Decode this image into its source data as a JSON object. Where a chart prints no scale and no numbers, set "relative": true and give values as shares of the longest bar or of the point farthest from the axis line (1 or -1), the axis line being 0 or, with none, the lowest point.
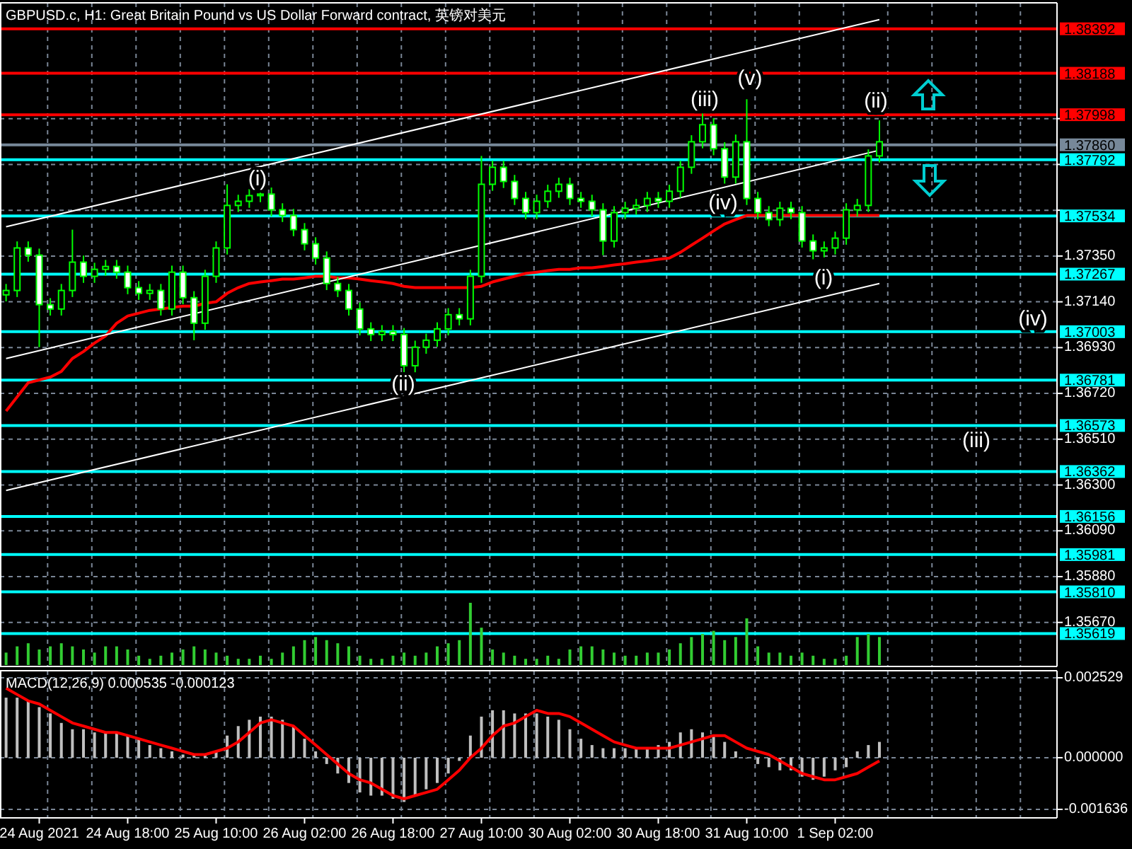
{
  "chart_data": [
    {
      "type": "candlestick",
      "title": "GBPUSD.c, H1:  Great Britain Pound vs US Dollar Forward contract, 英镑对美元",
      "color": "#00ff00",
      "categories": [
        null,
        null,
        null,
        null,
        null,
        null,
        null,
        null,
        null,
        null,
        null,
        null,
        null,
        null,
        null,
        null,
        null,
        null,
        null,
        null,
        null,
        null,
        null,
        null,
        null,
        null,
        null,
        null,
        null,
        null,
        null,
        null,
        null,
        null,
        null,
        null,
        null,
        null,
        null,
        null,
        null,
        null,
        null,
        null,
        null,
        null,
        null,
        null,
        null,
        null,
        null,
        null,
        null,
        null,
        null,
        null,
        null,
        null,
        null,
        null,
        null,
        null,
        null,
        null,
        null,
        null,
        null,
        null,
        null,
        null,
        null,
        null,
        null,
        null,
        null,
        null,
        null,
        null,
        null,
        null
      ],
      "ohlc": [
        [
          1.37172,
          1.37222,
          1.37142,
          1.37192
        ],
        [
          1.37192,
          1.37417,
          1.37162,
          1.37387
        ],
        [
          1.37387,
          1.37417,
          1.37324,
          1.37354
        ],
        [
          1.37354,
          1.37384,
          1.36932,
          1.37127
        ],
        [
          1.37127,
          1.37157,
          1.37077,
          1.37107
        ],
        [
          1.37107,
          1.37222,
          1.37077,
          1.37192
        ],
        [
          1.37192,
          1.37471,
          1.37162,
          1.37322
        ],
        [
          1.37322,
          1.37352,
          1.37227,
          1.37257
        ],
        [
          1.37257,
          1.37319,
          1.37227,
          1.37289
        ],
        [
          1.37289,
          1.37332,
          1.37259,
          1.37302
        ],
        [
          1.37302,
          1.37332,
          1.37246,
          1.37276
        ],
        [
          1.37276,
          1.37306,
          1.37175,
          1.37205
        ],
        [
          1.37205,
          1.37235,
          1.37149,
          1.37179
        ],
        [
          1.37179,
          1.37222,
          1.37149,
          1.37192
        ],
        [
          1.37192,
          1.37222,
          1.37077,
          1.37107
        ],
        [
          1.37107,
          1.37306,
          1.37077,
          1.37276
        ],
        [
          1.37276,
          1.37306,
          1.37129,
          1.37159
        ],
        [
          1.37159,
          1.37189,
          1.36964,
          1.37042
        ],
        [
          1.37042,
          1.37287,
          1.37012,
          1.37257
        ],
        [
          1.37257,
          1.37417,
          1.37227,
          1.37387
        ],
        [
          1.37387,
          1.37679,
          1.37357,
          1.37582
        ],
        [
          1.37582,
          1.37631,
          1.37552,
          1.37601
        ],
        [
          1.37601,
          1.37657,
          1.37571,
          1.37627
        ],
        [
          1.37627,
          1.37664,
          1.37597,
          1.37634
        ],
        [
          1.37634,
          1.37664,
          1.37532,
          1.37562
        ],
        [
          1.37562,
          1.37592,
          1.37506,
          1.37536
        ],
        [
          1.37536,
          1.37566,
          1.37441,
          1.37471
        ],
        [
          1.37471,
          1.37501,
          1.37376,
          1.37406
        ],
        [
          1.37406,
          1.37436,
          1.37311,
          1.37341
        ],
        [
          1.37341,
          1.37371,
          1.37194,
          1.37224
        ],
        [
          1.37224,
          1.37254,
          1.37162,
          1.37192
        ],
        [
          1.37192,
          1.37222,
          1.37077,
          1.37107
        ],
        [
          1.37107,
          1.37137,
          1.36986,
          1.37016
        ],
        [
          1.37016,
          1.37046,
          1.3696,
          1.3699
        ],
        [
          1.3699,
          1.37033,
          1.3696,
          1.37003
        ],
        [
          1.37003,
          1.37033,
          1.3696,
          1.3699
        ],
        [
          1.3699,
          1.3702,
          1.36802,
          1.36847
        ],
        [
          1.36847,
          1.36962,
          1.36817,
          1.36932
        ],
        [
          1.36932,
          1.36994,
          1.36902,
          1.36964
        ],
        [
          1.36964,
          1.37046,
          1.36934,
          1.37016
        ],
        [
          1.37016,
          1.37111,
          1.36986,
          1.37081
        ],
        [
          1.37081,
          1.37111,
          1.37032,
          1.37062
        ],
        [
          1.37062,
          1.37287,
          1.37032,
          1.37257
        ],
        [
          1.37257,
          1.37809,
          1.37227,
          1.37679
        ],
        [
          1.37679,
          1.37787,
          1.37649,
          1.37757
        ],
        [
          1.37757,
          1.37787,
          1.37662,
          1.37692
        ],
        [
          1.37692,
          1.37722,
          1.37584,
          1.37614
        ],
        [
          1.37614,
          1.37644,
          1.37519,
          1.37549
        ],
        [
          1.37549,
          1.37631,
          1.37519,
          1.37601
        ],
        [
          1.37601,
          1.37677,
          1.37571,
          1.37647
        ],
        [
          1.37647,
          1.37709,
          1.37617,
          1.37679
        ],
        [
          1.37679,
          1.37709,
          1.37584,
          1.37614
        ],
        [
          1.37614,
          1.37644,
          1.37571,
          1.37601
        ],
        [
          1.37601,
          1.37631,
          1.37532,
          1.37562
        ],
        [
          1.37562,
          1.37592,
          1.37354,
          1.37419
        ],
        [
          1.37419,
          1.37579,
          1.37389,
          1.37549
        ],
        [
          1.37549,
          1.37599,
          1.37519,
          1.37569
        ],
        [
          1.37569,
          1.37612,
          1.37539,
          1.37582
        ],
        [
          1.37582,
          1.37644,
          1.37552,
          1.37614
        ],
        [
          1.37614,
          1.37644,
          1.37571,
          1.37601
        ],
        [
          1.37601,
          1.37677,
          1.37571,
          1.37647
        ],
        [
          1.37647,
          1.37787,
          1.37617,
          1.37757
        ],
        [
          1.37757,
          1.37904,
          1.37727,
          1.37874
        ],
        [
          1.37874,
          1.38004,
          1.37844,
          1.37952
        ],
        [
          1.37952,
          1.37982,
          1.37812,
          1.37842
        ],
        [
          1.37842,
          1.37872,
          1.37682,
          1.37712
        ],
        [
          1.37712,
          1.37907,
          1.37682,
          1.37874
        ],
        [
          1.37874,
          1.38069,
          1.37584,
          1.37614
        ],
        [
          1.37614,
          1.37644,
          1.37519,
          1.37549
        ],
        [
          1.37549,
          1.37579,
          1.37487,
          1.37517
        ],
        [
          1.37517,
          1.37599,
          1.37487,
          1.37569
        ],
        [
          1.37569,
          1.37599,
          1.37519,
          1.37549
        ],
        [
          1.37549,
          1.37579,
          1.37389,
          1.37419
        ],
        [
          1.37419,
          1.37449,
          1.37335,
          1.37374
        ],
        [
          1.37374,
          1.37417,
          1.37344,
          1.37387
        ],
        [
          1.37387,
          1.37462,
          1.37357,
          1.37432
        ],
        [
          1.37432,
          1.37592,
          1.37402,
          1.37562
        ],
        [
          1.37562,
          1.37612,
          1.37532,
          1.37582
        ],
        [
          1.37582,
          1.37839,
          1.37552,
          1.37809
        ],
        [
          1.37809,
          1.37972,
          1.37779,
          1.37874
        ]
      ],
      "series": [
        {
          "type": "line",
          "color": "#ff0000",
          "values": [
            1.36639,
            1.36704,
            1.36769,
            1.36782,
            1.36795,
            1.36821,
            1.3688,
            1.36912,
            1.36951,
            1.36984,
            1.37042,
            1.37075,
            1.37088,
            1.37101,
            1.37107,
            1.37114,
            1.3712,
            1.3712,
            1.37133,
            1.3714,
            1.37179,
            1.37205,
            1.37224,
            1.37231,
            1.37237,
            1.37244,
            1.37244,
            1.3725,
            1.37257,
            1.37257,
            1.3725,
            1.3725,
            1.37244,
            1.37237,
            1.37231,
            1.37224,
            1.37211,
            1.37205,
            1.37205,
            1.37205,
            1.37205,
            1.37205,
            1.37205,
            1.37211,
            1.37231,
            1.37244,
            1.37257,
            1.3727,
            1.37276,
            1.37283,
            1.37289,
            1.37289,
            1.37296,
            1.37296,
            1.37302,
            1.37309,
            1.37315,
            1.37322,
            1.37328,
            1.37335,
            1.37341,
            1.37367,
            1.374,
            1.37432,
            1.37465,
            1.37497,
            1.37517,
            1.37536,
            1.37536,
            1.37536,
            1.37536,
            1.37536,
            1.37536,
            1.37536,
            1.37536,
            1.37536,
            1.37536,
            1.37536,
            1.37536,
            1.37536
          ]
        },
        {
          "type": "line",
          "color": "#ffffff",
          "values": [
            1.37484,
            null,
            null,
            null,
            null,
            null,
            null,
            null,
            null,
            null,
            null,
            null,
            null,
            null,
            null,
            null,
            null,
            null,
            null,
            null,
            null,
            null,
            null,
            null,
            null,
            null,
            null,
            null,
            null,
            null,
            null,
            null,
            null,
            null,
            null,
            null,
            null,
            null,
            null,
            null,
            null,
            null,
            null,
            null,
            null,
            null,
            null,
            null,
            null,
            null,
            null,
            null,
            null,
            null,
            null,
            null,
            null,
            null,
            null,
            null,
            null,
            null,
            null,
            null,
            null,
            null,
            null,
            null,
            null,
            null,
            null,
            null,
            null,
            null,
            null,
            null,
            null,
            null,
            null,
            1.38434
          ]
        },
        {
          "type": "line",
          "color": "#ffffff",
          "values": [
            1.3688,
            null,
            null,
            null,
            null,
            null,
            null,
            null,
            null,
            null,
            null,
            null,
            null,
            null,
            null,
            null,
            null,
            null,
            null,
            null,
            null,
            null,
            null,
            null,
            null,
            null,
            null,
            null,
            null,
            null,
            null,
            null,
            null,
            null,
            null,
            null,
            null,
            null,
            null,
            null,
            null,
            null,
            null,
            null,
            null,
            null,
            null,
            null,
            null,
            null,
            null,
            null,
            null,
            null,
            null,
            null,
            null,
            null,
            null,
            null,
            null,
            null,
            null,
            null,
            null,
            null,
            null,
            null,
            null,
            null,
            null,
            null,
            null,
            null,
            null,
            null,
            null,
            null,
            null,
            1.37835
          ]
        },
        {
          "type": "line",
          "color": "#ffffff",
          "values": [
            1.36275,
            null,
            null,
            null,
            null,
            null,
            null,
            null,
            null,
            null,
            null,
            null,
            null,
            null,
            null,
            null,
            null,
            null,
            null,
            null,
            null,
            null,
            null,
            null,
            null,
            null,
            null,
            null,
            null,
            null,
            null,
            null,
            null,
            null,
            null,
            null,
            null,
            null,
            null,
            null,
            null,
            null,
            null,
            null,
            null,
            null,
            null,
            null,
            null,
            null,
            null,
            null,
            null,
            null,
            null,
            null,
            null,
            null,
            null,
            null,
            null,
            null,
            null,
            null,
            null,
            null,
            null,
            null,
            null,
            null,
            null,
            null,
            null,
            null,
            null,
            null,
            null,
            null,
            null,
            1.37224
          ]
        }
      ],
      "ylim": [
        1.35468,
        1.38511
      ],
      "yticks": [
        {
          "value": 1.3798,
          "label": null
        },
        {
          "value": 1.3777,
          "label": null
        },
        {
          "value": 1.3756,
          "label": null
        },
        {
          "value": 1.3735,
          "label": "1.37350"
        },
        {
          "value": 1.3714,
          "label": "1.37140"
        },
        {
          "value": 1.3693,
          "label": "1.36930"
        },
        {
          "value": 1.3672,
          "label": "1.36720"
        },
        {
          "value": 1.3651,
          "label": "1.36510"
        },
        {
          "value": 1.363,
          "label": "1.36300"
        },
        {
          "value": 1.3609,
          "label": "1.36090"
        },
        {
          "value": 1.3588,
          "label": "1.35880"
        },
        {
          "value": 1.3567,
          "label": "1.35670"
        }
      ],
      "ref_lines": [
        {
          "axis": "y",
          "value": 1.38392,
          "label": "1.38392",
          "color": "#ff0000"
        },
        {
          "axis": "y",
          "value": 1.38188,
          "label": "1.38188",
          "color": "#ff0000"
        },
        {
          "axis": "y",
          "value": 1.37998,
          "label": "1.37998",
          "color": "#ff0000"
        },
        {
          "axis": "y",
          "value": 1.3786,
          "label": "1.37860",
          "color": "#778899"
        },
        {
          "axis": "y",
          "value": 1.37792,
          "label": "1.37792",
          "color": "#00ffff"
        },
        {
          "axis": "y",
          "value": 1.37534,
          "label": "1.37534",
          "color": "#00ffff"
        },
        {
          "axis": "y",
          "value": 1.37267,
          "label": "1.37267",
          "color": "#00ffff"
        },
        {
          "axis": "y",
          "value": 1.37003,
          "label": "1.37003",
          "color": "#00ffff"
        },
        {
          "axis": "y",
          "value": 1.36781,
          "label": "1.36781",
          "color": "#00ffff"
        },
        {
          "axis": "y",
          "value": 1.36573,
          "label": "1.36573",
          "color": "#00ffff"
        },
        {
          "axis": "y",
          "value": 1.36362,
          "label": "1.36362",
          "color": "#00ffff"
        },
        {
          "axis": "y",
          "value": 1.36156,
          "label": "1.36156",
          "color": "#00ffff"
        },
        {
          "axis": "y",
          "value": 1.35981,
          "label": "1.35981",
          "color": "#00ffff"
        },
        {
          "axis": "y",
          "value": 1.3581,
          "label": "1.35810",
          "color": "#00ffff"
        },
        {
          "axis": "y",
          "value": 1.35619,
          "label": "1.35619",
          "color": "#00ffff"
        }
      ],
      "annotations": [
        "(i)",
        "(ii)",
        "(iii)",
        "(v)",
        "(iv)",
        "(i)",
        "(ii)",
        "(iv)",
        "(iii)"
      ],
      "grid": true,
      "tick_labels": "y"
    },
    {
      "type": "bar",
      "relative": true,
      "color": "#32cd32",
      "tick_labels": false,
      "categories": [
        null,
        null,
        null,
        null,
        null,
        null,
        null,
        null,
        null,
        null,
        null,
        null,
        null,
        null,
        null,
        null,
        null,
        null,
        null,
        null,
        null,
        null,
        null,
        null,
        null,
        null,
        null,
        null,
        null,
        null,
        null,
        null,
        null,
        null,
        null,
        null,
        null,
        null,
        null,
        null,
        null,
        null,
        null,
        null,
        null,
        null,
        null,
        null,
        null,
        null,
        null,
        null,
        null,
        null,
        null,
        null,
        null,
        null,
        null,
        null,
        null,
        null,
        null,
        null,
        null,
        null,
        null,
        null,
        null,
        null,
        null,
        null,
        null,
        null,
        null,
        null,
        null,
        null,
        null,
        null
      ],
      "values": [
        0.2,
        0.3,
        0.35,
        0.25,
        0.3,
        0.35,
        0.3,
        0.25,
        0.2,
        0.3,
        0.3,
        0.25,
        0.15,
        0.1,
        0.15,
        0.2,
        0.25,
        0.3,
        0.25,
        0.2,
        0.15,
        0.1,
        0.1,
        0.15,
        0.1,
        0.2,
        0.3,
        0.4,
        0.45,
        0.4,
        0.35,
        0.3,
        0.15,
        0.1,
        0.1,
        0.15,
        0.2,
        0.15,
        0.2,
        0.3,
        0.35,
        0.4,
        1.0,
        0.6,
        0.25,
        0.2,
        0.15,
        0.1,
        0.1,
        0.15,
        0.1,
        0.25,
        0.3,
        0.3,
        0.25,
        0.2,
        0.15,
        0.15,
        0.2,
        0.2,
        0.25,
        0.35,
        0.45,
        0.5,
        0.55,
        0.4,
        0.45,
        0.75,
        0.3,
        0.2,
        0.2,
        0.15,
        0.2,
        0.15,
        0.1,
        0.1,
        0.15,
        0.45,
        0.5,
        0.45
      ]
    },
    {
      "type": "bar",
      "title": "MACD(12,26,9) 0.000535 -0.000123",
      "categories": [
        null,
        null,
        null,
        "24 Aug 2021",
        null,
        null,
        null,
        null,
        null,
        null,
        null,
        "24 Aug 18:00",
        null,
        null,
        null,
        null,
        null,
        null,
        null,
        "25 Aug 10:00",
        null,
        null,
        null,
        null,
        null,
        null,
        null,
        "26 Aug 02:00",
        null,
        null,
        null,
        null,
        null,
        null,
        null,
        "26 Aug 18:00",
        null,
        null,
        null,
        null,
        null,
        null,
        null,
        "27 Aug 10:00",
        null,
        null,
        null,
        null,
        null,
        null,
        null,
        "30 Aug 02:00",
        null,
        null,
        null,
        null,
        null,
        null,
        null,
        "30 Aug 18:00",
        null,
        null,
        null,
        null,
        null,
        null,
        null,
        "31 Aug 10:00",
        null,
        null,
        null,
        null,
        null,
        null,
        null,
        "1 Sep 02:00",
        null,
        null,
        null,
        null
      ],
      "series": [
        {
          "type": "bar",
          "color": "#c0c0c0",
          "values": [
            0.0019,
            0.0019,
            0.0018,
            0.0016,
            0.0014,
            0.0011,
            0.0009,
            0.0009,
            0.0008,
            0.0008,
            0.0008,
            0.0007,
            0.0006,
            0.0004,
            0.0003,
            0.0002,
            0.0001,
            0.0001,
            0.0001,
            0.0002,
            0.0007,
            0.001,
            0.0012,
            0.0013,
            0.0013,
            0.0012,
            0.001,
            0.0006,
            0.0002,
            -0.0002,
            -0.0005,
            -0.0008,
            -0.0011,
            -0.0012,
            -0.0012,
            -0.0013,
            -0.0014,
            -0.0012,
            -0.001,
            -0.0008,
            -0.0005,
            -0.0001,
            0.0007,
            0.0013,
            0.0015,
            0.0015,
            0.0014,
            0.0014,
            0.0014,
            0.0013,
            0.0012,
            0.0009,
            0.0006,
            0.0004,
            0.0003,
            0.0003,
            0.0003,
            0.0003,
            0.0003,
            0.0004,
            0.0005,
            0.0008,
            0.0009,
            0.0008,
            0.0007,
            0.0005,
            0.0002,
            0.0,
            -0.0002,
            -0.0003,
            -0.0004,
            -0.0004,
            -0.0006,
            -0.0007,
            -0.0006,
            -0.0004,
            -0.0003,
            0.0002,
            0.0004,
            0.0005
          ]
        },
        {
          "type": "line",
          "color": "#ff0000",
          "values": [
            0.0022,
            0.002,
            0.0018,
            0.0017,
            0.0015,
            0.0013,
            0.0011,
            0.001,
            0.0009,
            0.0008,
            0.0008,
            0.0007,
            0.0006,
            0.0005,
            0.0004,
            0.0003,
            0.0002,
            0.0001,
            0.0001,
            0.0002,
            0.0003,
            0.0005,
            0.0008,
            0.0011,
            0.0012,
            0.0011,
            0.001,
            0.0007,
            0.0004,
            0.0001,
            -0.0002,
            -0.0005,
            -0.0007,
            -0.0008,
            -0.001,
            -0.0012,
            -0.0013,
            -0.0012,
            -0.0011,
            -0.001,
            -0.0007,
            -0.0004,
            0.0,
            0.0003,
            0.0007,
            0.001,
            0.0011,
            0.0013,
            0.0015,
            0.0014,
            0.0014,
            0.0013,
            0.0011,
            0.0009,
            0.0007,
            0.0005,
            0.0004,
            0.0003,
            0.0003,
            0.0003,
            0.0003,
            0.0004,
            0.0005,
            0.0006,
            0.0007,
            0.0007,
            0.0005,
            0.0003,
            0.0002,
            0.0001,
            -0.0001,
            -0.0003,
            -0.0005,
            -0.0006,
            -0.0007,
            -0.0007,
            -0.0006,
            -0.0005,
            -0.0003,
            -0.0001
          ]
        }
      ],
      "ylim": [
        -0.001636,
        0.002529
      ],
      "yticks": [
        {
          "value": 0.002529,
          "label": "0.002529"
        },
        {
          "value": 0,
          "label": "0.000000"
        },
        {
          "value": -0.001636,
          "label": "-0.001636"
        }
      ],
      "grid": true
    }
  ]
}
